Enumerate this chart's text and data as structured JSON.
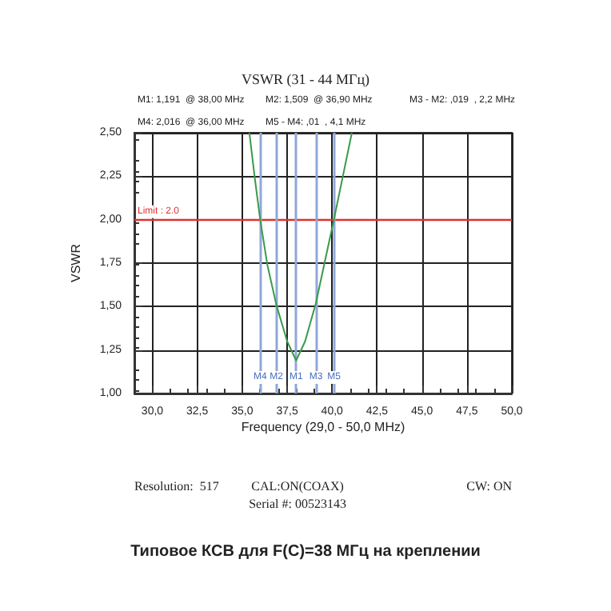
{
  "chart_data": {
    "type": "line",
    "title": "VSWR (31 - 44 МГц)",
    "xlabel": "Frequency (29,0 - 50,0 MHz)",
    "ylabel": "VSWR",
    "x": [
      35.4,
      35.7,
      36.0,
      36.4,
      36.9,
      37.5,
      38.0,
      38.5,
      39.1,
      39.6,
      40.1,
      40.6,
      41.1
    ],
    "series": [
      {
        "color": "#3a9a4a",
        "values": [
          2.5,
          2.24,
          2.0,
          1.74,
          1.509,
          1.3,
          1.19,
          1.3,
          1.52,
          1.76,
          2.0,
          2.25,
          2.5
        ]
      }
    ],
    "xlim": [
      29,
      50
    ],
    "ylim": [
      1,
      2.5
    ],
    "xticks": [
      {
        "value": 30,
        "label": "30,0"
      },
      {
        "value": 32.5,
        "label": "32,5"
      },
      {
        "value": 35,
        "label": "35,0"
      },
      {
        "value": 37.5,
        "label": "37,5"
      },
      {
        "value": 40,
        "label": "40,0"
      },
      {
        "value": 42.5,
        "label": "42,5"
      },
      {
        "value": 45,
        "label": "45,0"
      },
      {
        "value": 47.5,
        "label": "47,5"
      },
      {
        "value": 50,
        "label": "50,0"
      }
    ],
    "yticks": [
      {
        "value": 1,
        "label": "1,00"
      },
      {
        "value": 1.25,
        "label": "1,25"
      },
      {
        "value": 1.5,
        "label": "1,50"
      },
      {
        "value": 1.75,
        "label": "1,75"
      },
      {
        "value": 2,
        "label": "2,00"
      },
      {
        "value": 2.25,
        "label": "2,25"
      },
      {
        "value": 2.5,
        "label": "2,50"
      }
    ],
    "grid": true,
    "ref_lines": [
      {
        "axis": "y",
        "value": 2.0,
        "label": "Limit : 2.0",
        "color": "#e03030"
      },
      {
        "axis": "x",
        "value": 36.0,
        "label": "M4",
        "color": "#8fa8d8"
      },
      {
        "axis": "x",
        "value": 36.9,
        "label": "M2",
        "color": "#8fa8d8"
      },
      {
        "axis": "x",
        "value": 38.0,
        "label": "M1",
        "color": "#8fa8d8"
      },
      {
        "axis": "x",
        "value": 39.1,
        "label": "M3",
        "color": "#8fa8d8"
      },
      {
        "axis": "x",
        "value": 40.1,
        "label": "M5",
        "color": "#8fa8d8"
      }
    ],
    "annotations": [
      "M1: 1,191  @ 38,00 MHz",
      "M2: 1,509  @ 36,90 MHz",
      "M3 - M2: ,019  , 2,2 MHz",
      "M4: 2,016  @ 36,00 MHz",
      "M5 - M4: ,01  , 4,1 MHz",
      "Resolution:  517",
      "CAL:ON(COAX)",
      "CW: ON",
      "Serial #: 00523143",
      "Типовое КСВ для F(C)=38 МГц на креплении"
    ]
  }
}
